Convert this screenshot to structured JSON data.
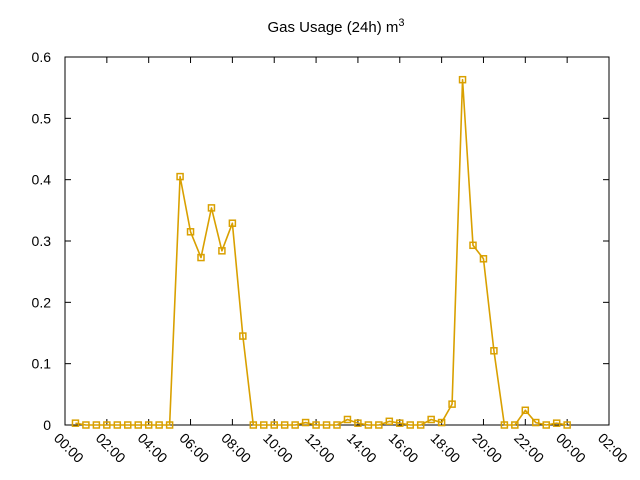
{
  "chart_data": {
    "type": "line",
    "title": "Gas Usage (24h) m",
    "title_superscript": "3",
    "xlabel": "",
    "ylabel": "",
    "x_tick_labels": [
      "00:00",
      "02:00",
      "04:00",
      "06:00",
      "08:00",
      "10:00",
      "12:00",
      "14:00",
      "16:00",
      "18:00",
      "20:00",
      "22:00",
      "00:00",
      "02:00"
    ],
    "y_tick_labels": [
      "0",
      "0.1",
      "0.2",
      "0.3",
      "0.4",
      "0.5",
      "0.6"
    ],
    "ylim": [
      0,
      0.6
    ],
    "x_unit": "hours",
    "xlim": [
      0,
      26
    ],
    "grid": false,
    "marker": "square",
    "series": [
      {
        "color": "#d9a000",
        "points": [
          [
            0.5,
            0.003
          ],
          [
            1.0,
            0.0
          ],
          [
            1.5,
            0.0
          ],
          [
            2.0,
            0.0
          ],
          [
            2.5,
            0.0
          ],
          [
            3.0,
            0.0
          ],
          [
            3.5,
            0.0
          ],
          [
            4.0,
            0.0
          ],
          [
            4.5,
            0.0
          ],
          [
            5.0,
            0.0
          ],
          [
            5.5,
            0.405
          ],
          [
            6.0,
            0.315
          ],
          [
            6.5,
            0.273
          ],
          [
            7.0,
            0.354
          ],
          [
            7.5,
            0.284
          ],
          [
            8.0,
            0.329
          ],
          [
            8.5,
            0.145
          ],
          [
            9.0,
            0.0
          ],
          [
            9.5,
            0.0
          ],
          [
            10.0,
            0.0
          ],
          [
            10.5,
            0.0
          ],
          [
            11.0,
            0.0
          ],
          [
            11.5,
            0.004
          ],
          [
            12.0,
            0.0
          ],
          [
            12.5,
            0.0
          ],
          [
            13.0,
            0.0
          ],
          [
            13.5,
            0.009
          ],
          [
            14.0,
            0.003
          ],
          [
            14.5,
            0.0
          ],
          [
            15.0,
            0.0
          ],
          [
            15.5,
            0.006
          ],
          [
            16.0,
            0.003
          ],
          [
            16.5,
            0.0
          ],
          [
            17.0,
            0.0
          ],
          [
            17.5,
            0.009
          ],
          [
            18.0,
            0.004
          ],
          [
            18.5,
            0.034
          ],
          [
            19.0,
            0.563
          ],
          [
            19.5,
            0.293
          ],
          [
            20.0,
            0.271
          ],
          [
            20.5,
            0.121
          ],
          [
            21.0,
            0.0
          ],
          [
            21.5,
            0.0
          ],
          [
            22.0,
            0.024
          ],
          [
            22.5,
            0.004
          ],
          [
            23.0,
            0.0
          ],
          [
            23.5,
            0.003
          ],
          [
            24.0,
            0.0
          ]
        ]
      }
    ]
  }
}
